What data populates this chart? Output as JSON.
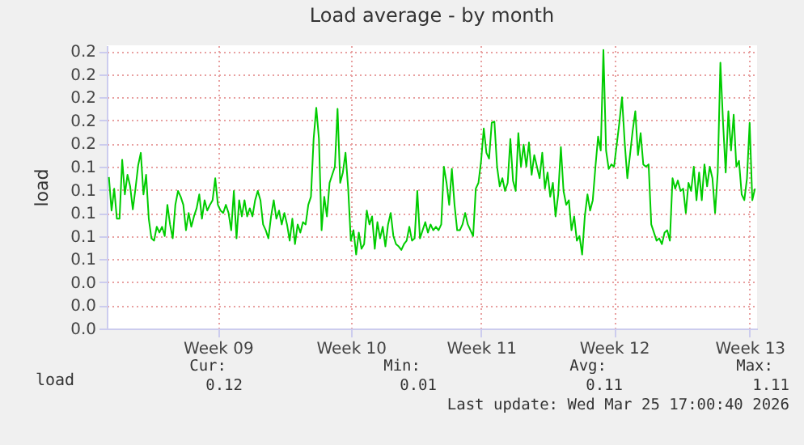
{
  "chart_data": {
    "type": "line",
    "title": "Load average - by month",
    "ylabel": "load",
    "categories": [
      null,
      null,
      null,
      null,
      null,
      null,
      null,
      null,
      null,
      null,
      null,
      null,
      null,
      null,
      null,
      null,
      null,
      null,
      null,
      null,
      null,
      null,
      null,
      null,
      null,
      null,
      null,
      null,
      null,
      null,
      null,
      null,
      null,
      null,
      null,
      null,
      null,
      null,
      null,
      null,
      null,
      "Week 09",
      null,
      null,
      null,
      null,
      null,
      null,
      null,
      null,
      null,
      null,
      null,
      null,
      null,
      null,
      null,
      null,
      null,
      null,
      null,
      null,
      null,
      null,
      null,
      null,
      null,
      null,
      null,
      null,
      null,
      null,
      null,
      null,
      null,
      null,
      null,
      null,
      null,
      null,
      null,
      null,
      null,
      null,
      null,
      null,
      null,
      null,
      null,
      null,
      null,
      "Week 10",
      null,
      null,
      null,
      null,
      null,
      null,
      null,
      null,
      null,
      null,
      null,
      null,
      null,
      null,
      null,
      null,
      null,
      null,
      null,
      null,
      null,
      null,
      null,
      null,
      null,
      null,
      null,
      null,
      null,
      null,
      null,
      null,
      null,
      null,
      null,
      null,
      null,
      null,
      null,
      null,
      null,
      null,
      null,
      null,
      null,
      null,
      null,
      null,
      "Week 11",
      null,
      null,
      null,
      null,
      null,
      null,
      null,
      null,
      null,
      null,
      null,
      null,
      null,
      null,
      null,
      null,
      null,
      null,
      null,
      null,
      null,
      null,
      null,
      null,
      null,
      null,
      null,
      null,
      null,
      null,
      null,
      null,
      null,
      null,
      null,
      null,
      null,
      null,
      null,
      null,
      null,
      null,
      null,
      null,
      null,
      null,
      null,
      null,
      null,
      "Week 12",
      null,
      null,
      null,
      null,
      null,
      null,
      null,
      null,
      null,
      null,
      null,
      null,
      null,
      null,
      null,
      null,
      null,
      null,
      null,
      null,
      null,
      null,
      null,
      null,
      null,
      null,
      null,
      null,
      null,
      null,
      null,
      null,
      null,
      null,
      null,
      null,
      null,
      null,
      null,
      null,
      null,
      null,
      null,
      null,
      null,
      null,
      null,
      null,
      null,
      null,
      "Week 13",
      null,
      null
    ],
    "series": [
      {
        "name": "load",
        "color": "#00cc00",
        "values": [
          0.131,
          0.102,
          0.121,
          0.095,
          0.095,
          0.146,
          0.116,
          0.133,
          0.123,
          0.103,
          0.121,
          0.141,
          0.152,
          0.116,
          0.133,
          0.095,
          0.078,
          0.076,
          0.088,
          0.083,
          0.088,
          0.08,
          0.107,
          0.09,
          0.078,
          0.107,
          0.119,
          0.114,
          0.107,
          0.085,
          0.1,
          0.088,
          0.097,
          0.104,
          0.116,
          0.095,
          0.111,
          0.102,
          0.107,
          0.111,
          0.13,
          0.107,
          0.102,
          0.1,
          0.107,
          0.1,
          0.085,
          0.119,
          0.078,
          0.111,
          0.097,
          0.111,
          0.097,
          0.104,
          0.097,
          0.111,
          0.119,
          0.111,
          0.09,
          0.085,
          0.078,
          0.097,
          0.111,
          0.095,
          0.102,
          0.09,
          0.1,
          0.09,
          0.076,
          0.095,
          0.073,
          0.09,
          0.083,
          0.092,
          0.09,
          0.107,
          0.114,
          0.164,
          0.191,
          0.164,
          0.085,
          0.114,
          0.097,
          0.126,
          0.133,
          0.14,
          0.19,
          0.126,
          0.135,
          0.152,
          0.121,
          0.076,
          0.085,
          0.064,
          0.083,
          0.069,
          0.073,
          0.102,
          0.09,
          0.097,
          0.069,
          0.092,
          0.078,
          0.088,
          0.071,
          0.09,
          0.1,
          0.08,
          0.073,
          0.071,
          0.068,
          0.073,
          0.076,
          0.088,
          0.076,
          0.078,
          0.119,
          0.078,
          0.085,
          0.092,
          0.083,
          0.09,
          0.085,
          0.088,
          0.085,
          0.09,
          0.14,
          0.126,
          0.107,
          0.138,
          0.107,
          0.085,
          0.085,
          0.09,
          0.1,
          0.09,
          0.085,
          0.08,
          0.121,
          0.126,
          0.145,
          0.173,
          0.152,
          0.147,
          0.178,
          0.179,
          0.14,
          0.123,
          0.13,
          0.119,
          0.126,
          0.164,
          0.128,
          0.119,
          0.169,
          0.14,
          0.159,
          0.14,
          0.161,
          0.133,
          0.15,
          0.14,
          0.13,
          0.152,
          0.121,
          0.135,
          0.114,
          0.126,
          0.097,
          0.116,
          0.157,
          0.119,
          0.107,
          0.111,
          0.085,
          0.097,
          0.076,
          0.08,
          0.064,
          0.097,
          0.116,
          0.102,
          0.111,
          0.14,
          0.166,
          0.154,
          0.241,
          0.154,
          0.138,
          0.142,
          0.14,
          0.159,
          0.178,
          0.2,
          0.161,
          0.13,
          0.15,
          0.171,
          0.188,
          0.15,
          0.169,
          0.142,
          0.14,
          0.142,
          0.09,
          0.083,
          0.076,
          0.078,
          0.073,
          0.083,
          0.085,
          0.076,
          0.13,
          0.121,
          0.128,
          0.119,
          0.121,
          0.1,
          0.126,
          0.119,
          0.14,
          0.111,
          0.135,
          0.111,
          0.142,
          0.123,
          0.14,
          0.13,
          0.1,
          0.135,
          0.23,
          0.178,
          0.135,
          0.188,
          0.154,
          0.185,
          0.14,
          0.145,
          0.116,
          0.111,
          0.13,
          0.178,
          0.111,
          0.121
        ]
      }
    ],
    "ylim": [
      0,
      0.245
    ],
    "yticks": [
      {
        "value": 0,
        "label": "0.0"
      },
      {
        "value": 0.02,
        "label": "0.0"
      },
      {
        "value": 0.04,
        "label": "0.0"
      },
      {
        "value": 0.06,
        "label": "0.1"
      },
      {
        "value": 0.08,
        "label": "0.1"
      },
      {
        "value": 0.1,
        "label": "0.1"
      },
      {
        "value": 0.12,
        "label": "0.1"
      },
      {
        "value": 0.14,
        "label": "0.1"
      },
      {
        "value": 0.16,
        "label": "0.2"
      },
      {
        "value": 0.18,
        "label": "0.2"
      },
      {
        "value": 0.2,
        "label": "0.2"
      },
      {
        "value": 0.22,
        "label": "0.2"
      },
      {
        "value": 0.24,
        "label": "0.2"
      }
    ],
    "grid": true,
    "legend": "bottom left",
    "annotations": [
      "Cur:",
      "0.12",
      "Min:",
      "0.01",
      "Avg:",
      "0.11",
      "Max:",
      "1.11",
      "Last update: Wed Mar 25 17:00:40 2026"
    ]
  }
}
